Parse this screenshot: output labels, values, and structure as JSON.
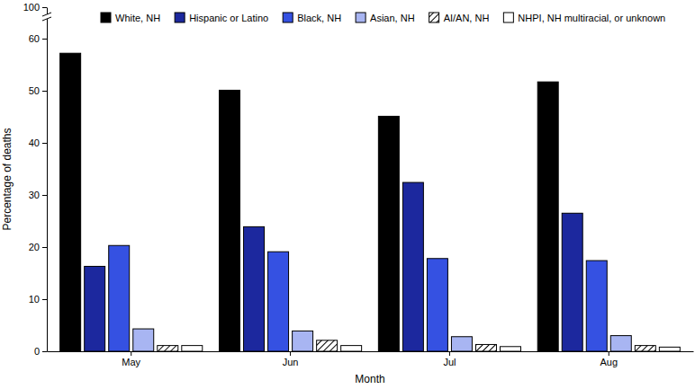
{
  "chart_data": {
    "type": "bar",
    "xlabel": "Month",
    "ylabel": "Percentage of deaths",
    "categories": [
      "May",
      "Jun",
      "Jul",
      "Aug"
    ],
    "series": [
      {
        "name": "White, NH",
        "color": "#000000",
        "values": [
          57.2,
          50.1,
          45.1,
          51.7
        ]
      },
      {
        "name": "Hispanic or Latino",
        "color": "#1c289e",
        "values": [
          16.3,
          23.9,
          32.4,
          26.5
        ]
      },
      {
        "name": "Black, NH",
        "color": "#3551e2",
        "values": [
          20.3,
          19.1,
          17.8,
          17.4
        ]
      },
      {
        "name": "Asian, NH",
        "color": "#a8b5f2",
        "values": [
          4.3,
          3.9,
          2.8,
          3.0
        ]
      },
      {
        "name": "AI/AN, NH",
        "color": "#ffffff",
        "marker": "hatch",
        "values": [
          1.1,
          2.1,
          1.3,
          1.1
        ]
      },
      {
        "name": "NHPI, NH multiracial, or unknown",
        "color": "#ffffff",
        "values": [
          1.1,
          1.1,
          0.9,
          0.8
        ]
      }
    ],
    "ylim": [
      0,
      100
    ],
    "yticks": [
      0,
      10,
      20,
      30,
      40,
      50,
      60,
      100
    ],
    "grid": false,
    "legend": "top"
  }
}
